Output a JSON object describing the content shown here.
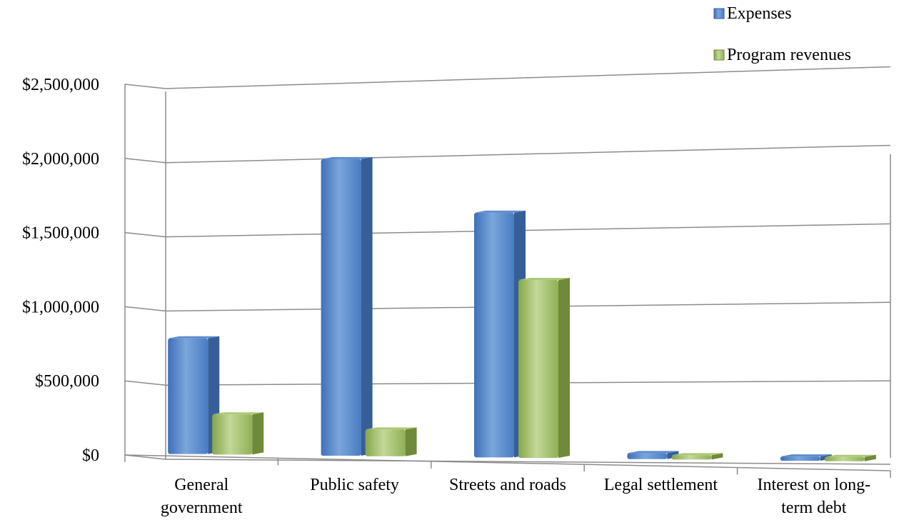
{
  "chart_data": {
    "type": "bar",
    "categories": [
      [
        "General",
        "government"
      ],
      [
        "Public safety"
      ],
      [
        "Streets and roads"
      ],
      [
        "Legal settlement"
      ],
      [
        "Interest on long-",
        "term debt"
      ]
    ],
    "series": [
      {
        "name": "Expenses",
        "values": [
          780000,
          2000000,
          1650000,
          40000,
          20000
        ]
      },
      {
        "name": "Program revenues",
        "values": [
          270000,
          180000,
          1200000,
          5000,
          5000
        ]
      }
    ],
    "ylim": [
      0,
      2500000
    ],
    "yticks": [
      "$0",
      "$500,000",
      "$1,000,000",
      "$1,500,000",
      "$2,000,000",
      "$2,500,000"
    ],
    "legend_position": "top-right",
    "grid": true,
    "colors": {
      "Expenses": "#4f81bd",
      "Program revenues": "#9bbb59"
    }
  }
}
